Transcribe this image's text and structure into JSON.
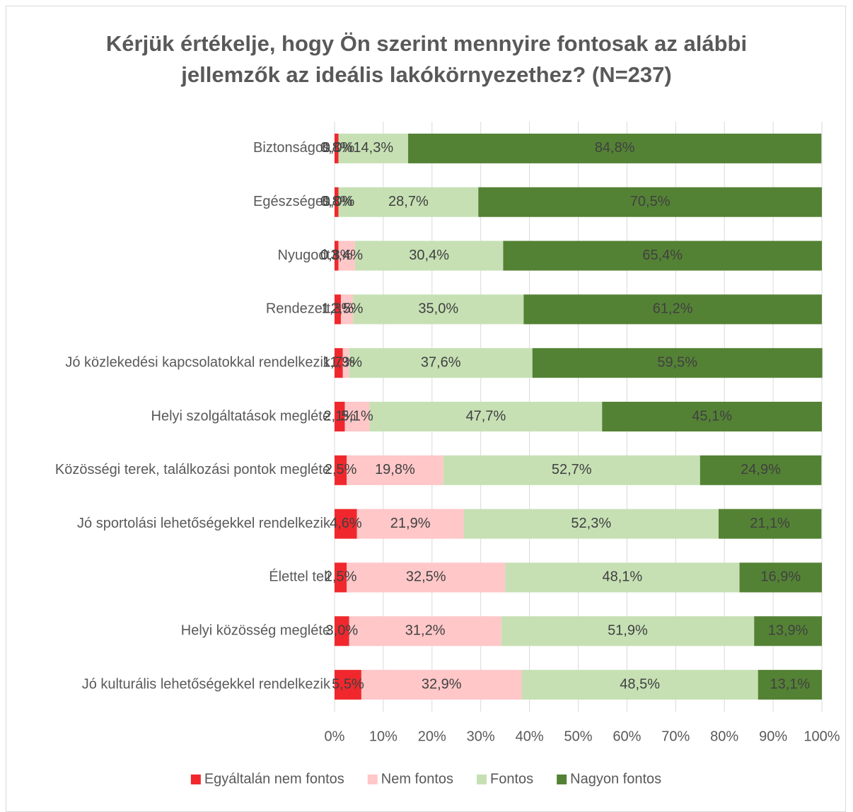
{
  "chart_data": {
    "type": "stacked_barh",
    "title": "Kérjük értékelje, hogy Ön szerint mennyire fontosak az alábbi jellemzők az ideális lakókörnyezethez? (N=237)",
    "categories": [
      "Biztonságos",
      "Egészséges",
      "Nyugodt",
      "Rendezett",
      "Jó közlekedési kapcsolatokkal rendelkezik",
      "Helyi szolgáltatások megléte",
      "Közösségi terek, találkozási pontok megléte",
      "Jó sportolási lehetőségekkel rendelkezik",
      "Élettel teli",
      "Helyi közösség megléte",
      "Jó kulturális lehetőségekkel rendelkezik"
    ],
    "series": [
      {
        "name": "Egyáltalán nem fontos",
        "color": "#f0282d",
        "values": [
          0.8,
          0.8,
          0.8,
          1.3,
          1.7,
          2.1,
          2.5,
          4.6,
          2.5,
          3.0,
          5.5
        ],
        "value_labels": [
          "0,8%",
          "0,8%",
          "0,8%",
          "1,3%",
          "1,7%",
          "2,1%",
          "2,5%",
          "4,6%",
          "2,5%",
          "3,0%",
          "5,5%"
        ]
      },
      {
        "name": "Nem fontos",
        "color": "#ffc7c8",
        "values": [
          0.0,
          0.0,
          3.4,
          2.5,
          1.3,
          5.1,
          19.8,
          21.9,
          32.5,
          31.2,
          32.9
        ],
        "value_labels": [
          "0,0%",
          "0,0%",
          "3,4%",
          "2,5%",
          "1,3%",
          "5,1%",
          "19,8%",
          "21,9%",
          "32,5%",
          "31,2%",
          "32,9%"
        ]
      },
      {
        "name": "Fontos",
        "color": "#c6e0b4",
        "values": [
          14.3,
          28.7,
          30.4,
          35.0,
          37.6,
          47.7,
          52.7,
          52.3,
          48.1,
          51.9,
          48.5
        ],
        "value_labels": [
          "14,3%",
          "28,7%",
          "30,4%",
          "35,0%",
          "37,6%",
          "47,7%",
          "52,7%",
          "52,3%",
          "48,1%",
          "51,9%",
          "48,5%"
        ]
      },
      {
        "name": "Nagyon fontos",
        "color": "#548235",
        "values": [
          84.8,
          70.5,
          65.4,
          61.2,
          59.5,
          45.1,
          24.9,
          21.1,
          16.9,
          13.9,
          13.1
        ],
        "value_labels": [
          "84,8%",
          "70,5%",
          "65,4%",
          "61,2%",
          "59,5%",
          "45,1%",
          "24,9%",
          "21,1%",
          "16,9%",
          "13,9%",
          "13,1%"
        ]
      }
    ],
    "xlim": [
      0,
      100
    ],
    "xticks": [
      {
        "value": 0,
        "label": "0%"
      },
      {
        "value": 10,
        "label": "10%"
      },
      {
        "value": 20,
        "label": "20%"
      },
      {
        "value": 30,
        "label": "30%"
      },
      {
        "value": 40,
        "label": "40%"
      },
      {
        "value": 50,
        "label": "50%"
      },
      {
        "value": 60,
        "label": "60%"
      },
      {
        "value": 70,
        "label": "70%"
      },
      {
        "value": 80,
        "label": "80%"
      },
      {
        "value": 90,
        "label": "90%"
      },
      {
        "value": 100,
        "label": "100%"
      }
    ],
    "grid": true,
    "legend": "bottom"
  }
}
